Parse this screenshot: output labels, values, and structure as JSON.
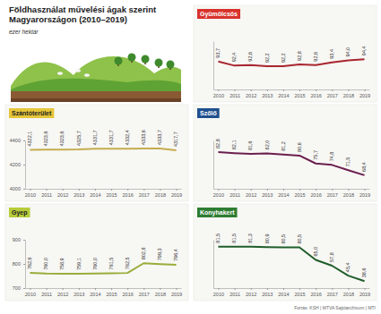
{
  "title": [
    "Földhasználat művelési ágak szerint",
    "Magyarországon (2010–2019)"
  ],
  "subtitle": "ezer hektár",
  "source": "Forrás: KSH | MTVA Sajtóarchívum | MTI",
  "chart_data": [
    {
      "type": "line",
      "title": "Gyümölcsös",
      "categories": [
        "2010",
        "2011",
        "2012",
        "2013",
        "2014",
        "2015",
        "2016",
        "2017",
        "2018",
        "2019"
      ],
      "values": [
        93.7,
        92.4,
        92.6,
        92.2,
        92.2,
        92.8,
        92.6,
        93.4,
        94.0,
        94.4
      ],
      "value_labels": [
        "93,7",
        "92,4",
        "92,6",
        "92,2",
        "92,2",
        "92,8",
        "92,6",
        "93,4",
        "94,0",
        "94,4"
      ],
      "color": "#a8262f",
      "ylim": [
        85,
        100
      ],
      "data_labels": true,
      "tick_labels": "x"
    },
    {
      "type": "line",
      "title": "Szántóterület",
      "categories": [
        "2010",
        "2011",
        "2012",
        "2013",
        "2014",
        "2015",
        "2016",
        "2017",
        "2018",
        "2019"
      ],
      "values": [
        4322.1,
        4323.6,
        4323.6,
        4325.7,
        4331.7,
        4331.7,
        4332.4,
        4333.6,
        4333.7,
        4317.7
      ],
      "value_labels": [
        "4322,1",
        "4323,6",
        "4323,6",
        "4325,7",
        "4331,7",
        "4331,7",
        "4332,4",
        "4333,6",
        "4333,7",
        "4317,7"
      ],
      "color": "#c4ad4e",
      "ylim": [
        4000,
        4400
      ],
      "yticks": [
        4000,
        4200,
        4400
      ],
      "data_labels": true
    },
    {
      "type": "line",
      "title": "Szőlő",
      "categories": [
        "2010",
        "2011",
        "2012",
        "2013",
        "2014",
        "2015",
        "2016",
        "2017",
        "2018",
        "2019"
      ],
      "values": [
        82.8,
        82.1,
        81.6,
        82.0,
        81.2,
        80.6,
        75.7,
        74.8,
        71.5,
        68.4
      ],
      "value_labels": [
        "82,8",
        "82,1",
        "81,6",
        "82,0",
        "81,2",
        "80,6",
        "75,7",
        "74,8",
        "71,5",
        "68,4"
      ],
      "color": "#6b1f4e",
      "ylim": [
        60,
        90
      ],
      "data_labels": true,
      "tick_labels": "x"
    },
    {
      "type": "line",
      "title": "Gyep",
      "categories": [
        "2010",
        "2011",
        "2012",
        "2013",
        "2014",
        "2015",
        "2016",
        "2017",
        "2018",
        "2019"
      ],
      "values": [
        762.6,
        760.0,
        758.9,
        759.1,
        760.0,
        761.5,
        762.5,
        802.8,
        799.3,
        796.4
      ],
      "value_labels": [
        "762,6",
        "760,0",
        "758,9",
        "759,1",
        "760,0",
        "761,5",
        "762,5",
        "802,8",
        "799,3",
        "796,4"
      ],
      "color": "#9aac3a",
      "ylim": [
        700,
        900
      ],
      "yticks": [
        700,
        800,
        900
      ],
      "data_labels": true
    },
    {
      "type": "line",
      "title": "Konyhakert",
      "categories": [
        "2010",
        "2011",
        "2012",
        "2013",
        "2014",
        "2015",
        "2016",
        "2017",
        "2018",
        "2019"
      ],
      "values": [
        81.5,
        81.5,
        81.3,
        80.9,
        80.5,
        80.5,
        65.0,
        57.8,
        45.4,
        38.6
      ],
      "value_labels": [
        "81,5",
        "81,5",
        "81,3",
        "80,9",
        "80,5",
        "80,5",
        "65,0",
        "57,8",
        "45,4",
        "38,6"
      ],
      "color": "#1f5e2a",
      "ylim": [
        30,
        90
      ],
      "data_labels": true,
      "tick_labels": "x"
    }
  ]
}
